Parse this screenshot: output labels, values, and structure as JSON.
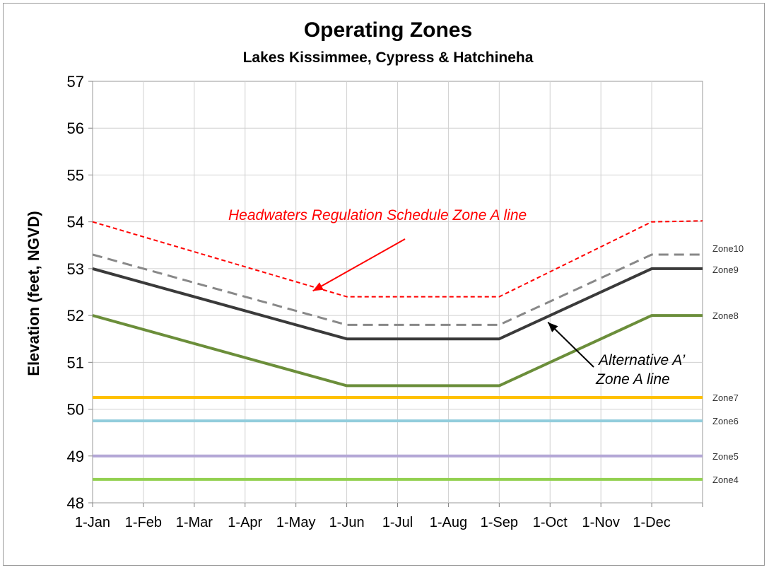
{
  "chart_data": {
    "type": "line",
    "title": "Operating Zones",
    "subtitle": "Lakes Kissimmee, Cypress & Hatchineha",
    "xlabel": "",
    "ylabel": "Elevation (feet, NGVD)",
    "ylim": [
      48,
      57
    ],
    "yticks": [
      48,
      49,
      50,
      51,
      52,
      53,
      54,
      55,
      56,
      57
    ],
    "categories": [
      "1-Jan",
      "1-Feb",
      "1-Mar",
      "1-Apr",
      "1-May",
      "1-Jun",
      "1-Jul",
      "1-Aug",
      "1-Sep",
      "1-Oct",
      "1-Nov",
      "1-Dec",
      "31-Dec"
    ],
    "category_tick_labels": [
      "1-Jan",
      "1-Feb",
      "1-Mar",
      "1-Apr",
      "1-May",
      "1-Jun",
      "1-Jul",
      "1-Aug",
      "1-Sep",
      "1-Oct",
      "1-Nov",
      "1-Dec",
      ""
    ],
    "grid": true,
    "series": [
      {
        "id": "zone-a-line",
        "color": "#ff0000",
        "dash": "short",
        "width": 2,
        "x": [
          "1-Jan",
          "1-Jun",
          "1-Sep",
          "1-Dec",
          "31-Dec"
        ],
        "values": [
          54,
          52.4,
          52.4,
          54,
          54.02
        ]
      },
      {
        "id": "zone10",
        "name": "Zone10",
        "color": "#888888",
        "dash": "long",
        "width": 3,
        "x": [
          "1-Jan",
          "1-Jun",
          "1-Sep",
          "1-Dec",
          "31-Dec"
        ],
        "values": [
          53.3,
          51.8,
          51.8,
          53.3,
          53.3
        ]
      },
      {
        "id": "zone9",
        "name": "Zone9",
        "color": "#3a3a3a",
        "dash": "solid",
        "width": 4,
        "x": [
          "1-Jan",
          "1-Jun",
          "1-Sep",
          "1-Dec",
          "31-Dec"
        ],
        "values": [
          53,
          51.5,
          51.5,
          53,
          53
        ]
      },
      {
        "id": "zone8",
        "name": "Zone8",
        "color": "#6b8e3a",
        "dash": "solid",
        "width": 4,
        "x": [
          "1-Jan",
          "1-Jun",
          "1-Sep",
          "1-Dec",
          "31-Dec"
        ],
        "values": [
          52,
          50.5,
          50.5,
          52,
          52
        ]
      },
      {
        "id": "zone7",
        "name": "Zone7",
        "color": "#ffc000",
        "dash": "solid",
        "width": 4,
        "x": [
          "1-Jan",
          "31-Dec"
        ],
        "values": [
          50.25,
          50.25
        ]
      },
      {
        "id": "zone6",
        "name": "Zone6",
        "color": "#92cddc",
        "dash": "solid",
        "width": 4,
        "x": [
          "1-Jan",
          "31-Dec"
        ],
        "values": [
          49.75,
          49.75
        ]
      },
      {
        "id": "zone5",
        "name": "Zone5",
        "color": "#b4a7d6",
        "dash": "solid",
        "width": 4,
        "x": [
          "1-Jan",
          "31-Dec"
        ],
        "values": [
          49,
          49
        ]
      },
      {
        "id": "zone4",
        "name": "Zone4",
        "color": "#92d050",
        "dash": "solid",
        "width": 4,
        "x": [
          "1-Jan",
          "31-Dec"
        ],
        "values": [
          48.5,
          48.5
        ]
      }
    ],
    "annotations": [
      {
        "id": "hrs-annotation",
        "lines": [
          "Headwaters Regulation Schedule Zone A line"
        ],
        "color": "#ff0000",
        "points_to": {
          "x": "1-May",
          "y": 52.6
        }
      },
      {
        "id": "alt-annotation",
        "lines": [
          "Alternative A’",
          "Zone A line"
        ],
        "color": "#000000",
        "points_to": {
          "x": "1-Oct",
          "y": 51.9
        }
      }
    ]
  }
}
